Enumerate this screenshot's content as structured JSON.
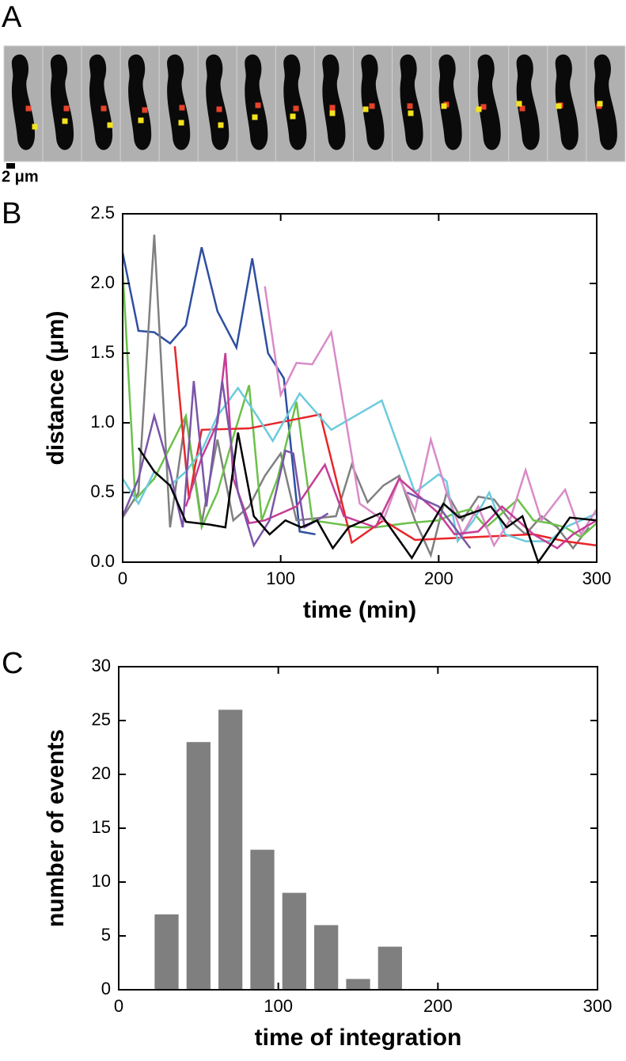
{
  "panel_a": {
    "label": "A",
    "scale_bar": "2 μm"
  },
  "chart_data": [
    {
      "type": "line",
      "panel_label": "B",
      "xlabel": "time (min)",
      "ylabel": "distance (μm)",
      "xlim": [
        0,
        300
      ],
      "xticks": [
        0,
        100,
        200,
        300
      ],
      "ylim": [
        0,
        2.5
      ],
      "yticks": [
        {
          "value": 0,
          "label": "0.0"
        },
        0.5,
        {
          "value": 1,
          "label": "1.0"
        },
        1.5,
        {
          "value": 2,
          "label": "2.0"
        },
        2.5
      ],
      "series": [
        {
          "color": "#2e4fa0",
          "x": [
            0,
            10,
            20,
            30,
            40,
            50,
            60,
            72,
            82,
            92,
            102,
            112,
            122
          ],
          "values": [
            2.22,
            1.66,
            1.65,
            1.57,
            1.7,
            2.26,
            1.8,
            1.54,
            2.18,
            1.5,
            1.32,
            0.22,
            0.2
          ]
        },
        {
          "color": "#808080",
          "x": [
            0,
            10,
            20,
            30,
            40,
            50,
            60,
            70,
            80,
            90,
            100,
            110,
            135,
            145,
            155,
            165,
            175,
            185,
            195,
            205,
            215,
            225,
            235,
            245,
            255,
            265,
            275,
            285,
            295
          ],
          "values": [
            0.32,
            0.5,
            2.35,
            0.25,
            1.05,
            0.28,
            0.88,
            0.3,
            0.4,
            0.62,
            0.78,
            0.3,
            0.33,
            0.7,
            0.43,
            0.55,
            0.62,
            0.3,
            0.05,
            0.5,
            0.3,
            0.47,
            0.45,
            0.3,
            0.2,
            0.33,
            0.25,
            0.1,
            0.25
          ]
        },
        {
          "color": "#6cc04a",
          "x": [
            0,
            8,
            20,
            40,
            50,
            60,
            70,
            80,
            88,
            98,
            110,
            120,
            150,
            160,
            180,
            200,
            210,
            220,
            230,
            240,
            250,
            260,
            270,
            280,
            290,
            300
          ],
          "values": [
            2.1,
            0.45,
            0.6,
            1.05,
            0.25,
            0.5,
            0.9,
            1.27,
            0.3,
            0.6,
            1.15,
            0.3,
            0.25,
            0.25,
            0.28,
            0.3,
            0.35,
            0.38,
            0.25,
            0.35,
            0.45,
            0.3,
            0.28,
            0.25,
            0.18,
            0.28
          ]
        },
        {
          "color": "#e8262a",
          "x": [
            33,
            42,
            50,
            80,
            125,
            145,
            165,
            185,
            260,
            280,
            300
          ],
          "values": [
            1.55,
            0.45,
            0.95,
            0.96,
            1.06,
            0.14,
            0.3,
            0.16,
            0.2,
            0.15,
            0.12
          ]
        },
        {
          "color": "#6ccbdc",
          "x": [
            0,
            10,
            20,
            30,
            40,
            50,
            60,
            73,
            85,
            95,
            112,
            132,
            164,
            185,
            200,
            205,
            212,
            222,
            232,
            242,
            255,
            270,
            280,
            300
          ],
          "values": [
            0.6,
            0.42,
            0.65,
            0.55,
            0.65,
            0.8,
            1.05,
            1.25,
            1.05,
            0.87,
            1.21,
            0.95,
            1.16,
            0.5,
            0.63,
            0.58,
            0.15,
            0.3,
            0.5,
            0.2,
            0.15,
            0.15,
            0.25,
            0.35
          ]
        },
        {
          "color": "#d98bc8",
          "x": [
            90,
            100,
            110,
            120,
            132,
            150,
            165,
            175,
            185,
            195,
            205,
            215,
            225,
            235,
            245,
            255,
            265,
            280,
            290,
            300
          ],
          "values": [
            1.98,
            1.2,
            1.43,
            1.42,
            1.65,
            0.42,
            0.3,
            0.6,
            0.37,
            0.88,
            0.5,
            0.2,
            0.4,
            0.12,
            0.3,
            0.66,
            0.3,
            0.52,
            0.2,
            0.38
          ]
        },
        {
          "color": "#c63d96",
          "x": [
            40,
            50,
            60,
            65,
            70,
            80,
            90,
            110,
            128,
            140,
            160,
            175,
            190,
            200,
            210,
            225,
            240,
            260,
            275,
            285,
            300
          ],
          "values": [
            0.4,
            0.75,
            1.0,
            1.5,
            0.6,
            0.28,
            0.3,
            0.4,
            0.7,
            0.33,
            0.25,
            0.6,
            0.45,
            0.35,
            0.2,
            0.22,
            0.4,
            0.2,
            0.1,
            0.2,
            0.3
          ]
        },
        {
          "color": "#7a55a8",
          "x": [
            0,
            10,
            20,
            30,
            38,
            45,
            53,
            63,
            73,
            83,
            93,
            103,
            108,
            115,
            123,
            130
          ],
          "values": [
            0.33,
            0.6,
            1.05,
            0.65,
            0.25,
            1.3,
            0.4,
            1.3,
            0.5,
            0.12,
            0.3,
            0.8,
            0.78,
            0.25,
            0.3,
            0.35
          ]
        },
        {
          "color": "#7a55a8",
          "x": [
            180,
            200,
            220
          ],
          "values": [
            0.5,
            0.4,
            0.1
          ]
        },
        {
          "color": "#000000",
          "x": [
            10,
            20,
            30,
            40,
            55,
            65,
            73,
            83,
            93,
            103,
            113,
            123,
            133,
            143,
            163,
            183,
            203,
            213,
            233,
            243,
            253,
            263,
            283,
            300
          ],
          "values": [
            0.82,
            0.65,
            0.55,
            0.29,
            0.27,
            0.25,
            0.93,
            0.33,
            0.2,
            0.3,
            0.25,
            0.3,
            0.1,
            0.25,
            0.35,
            0.03,
            0.42,
            0.32,
            0.4,
            0.25,
            0.33,
            0.0,
            0.32,
            0.3
          ]
        }
      ]
    },
    {
      "type": "bar",
      "panel_label": "C",
      "xlabel": "time of integration",
      "ylabel": "number of events",
      "xlim": [
        0,
        300
      ],
      "xticks": [
        0,
        100,
        200,
        300
      ],
      "ylim": [
        0,
        30
      ],
      "yticks": [
        0,
        5,
        10,
        15,
        20,
        25,
        30
      ],
      "color": "#7f7f7f",
      "x": [
        30,
        50,
        70,
        90,
        110,
        130,
        150,
        170
      ],
      "values": [
        7,
        23,
        26,
        13,
        9,
        6,
        1,
        4
      ]
    }
  ]
}
